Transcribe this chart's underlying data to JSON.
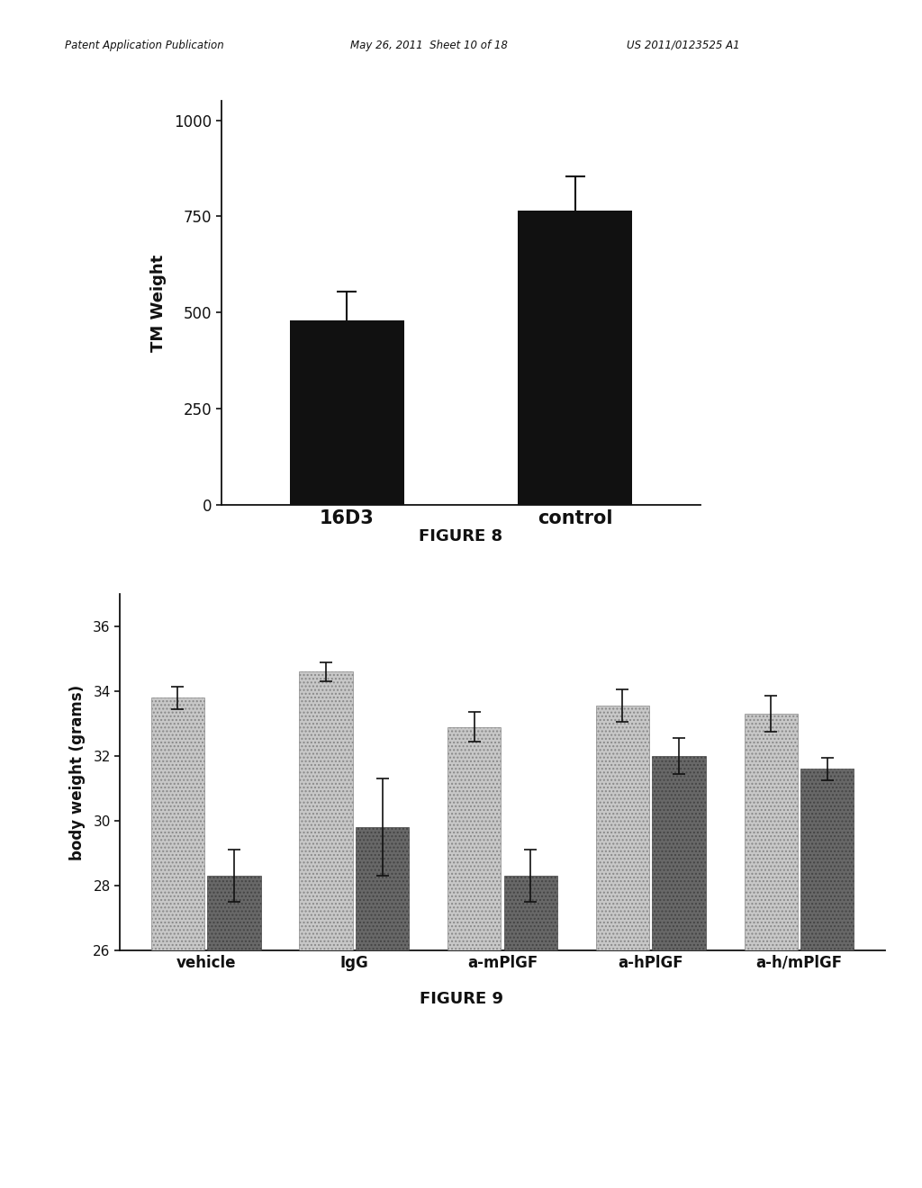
{
  "fig8": {
    "categories": [
      "16D3",
      "control"
    ],
    "values": [
      480,
      765
    ],
    "errors": [
      75,
      90
    ],
    "bar_color": "#111111",
    "ylabel": "TM Weight",
    "ylim": [
      0,
      1050
    ],
    "yticks": [
      0,
      250,
      500,
      750,
      1000
    ],
    "title": "FIGURE 8"
  },
  "fig9": {
    "categories": [
      "vehicle",
      "IgG",
      "a-mPlGF",
      "a-hPlGF",
      "a-h/mPlGF"
    ],
    "light_values": [
      33.8,
      34.6,
      32.9,
      33.55,
      33.3
    ],
    "dark_values": [
      28.3,
      29.8,
      28.3,
      32.0,
      31.6
    ],
    "light_errors": [
      0.35,
      0.3,
      0.45,
      0.5,
      0.55
    ],
    "dark_errors": [
      0.8,
      1.5,
      0.8,
      0.55,
      0.35
    ],
    "light_color": "#c8c8c8",
    "dark_color": "#686868",
    "light_hatch": "....",
    "dark_hatch": "....",
    "ylabel": "body weight (grams)",
    "ylim": [
      26,
      37
    ],
    "yticks": [
      26,
      28,
      30,
      32,
      34,
      36
    ],
    "title": "FIGURE 9"
  },
  "header_left": "Patent Application Publication",
  "header_mid": "May 26, 2011  Sheet 10 of 18",
  "header_right": "US 2011/0123525 A1",
  "bg_color": "#ffffff"
}
